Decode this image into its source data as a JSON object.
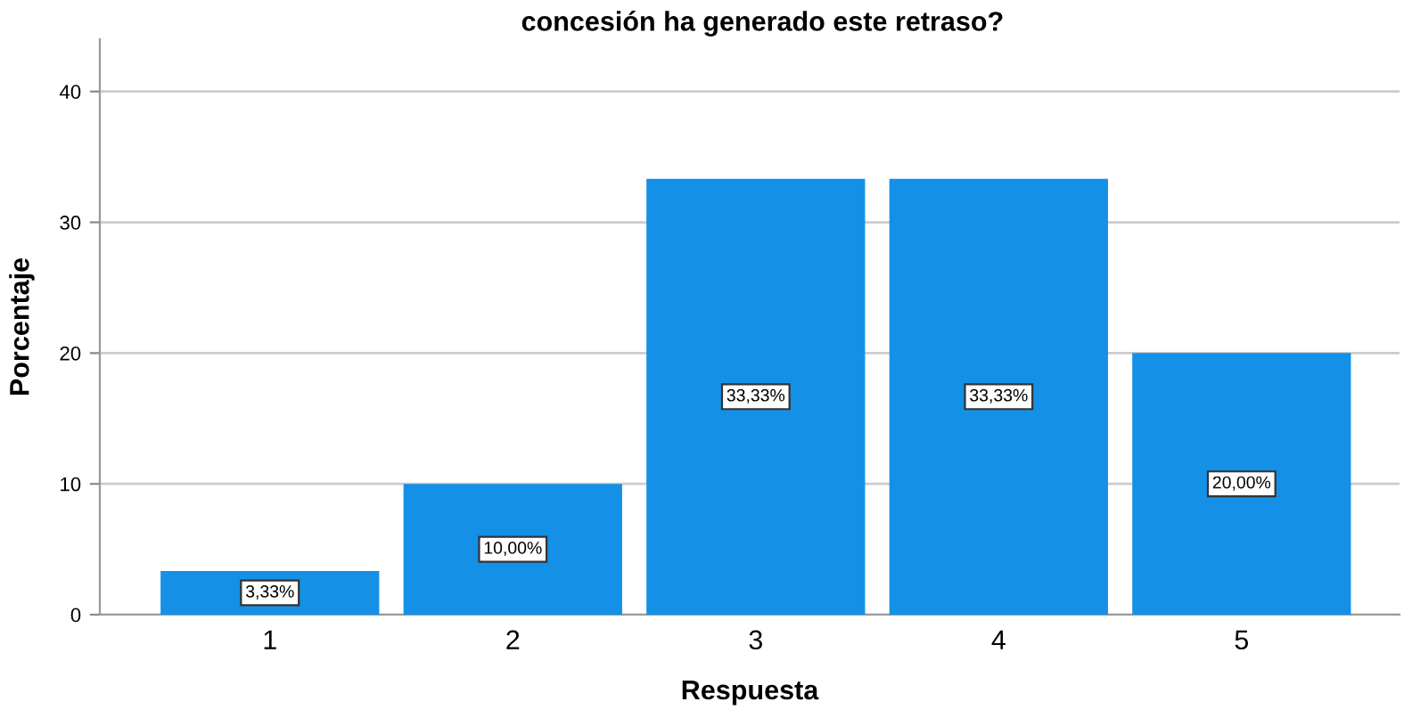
{
  "chart_data": {
    "type": "bar",
    "title": "concesión ha generado este retraso?",
    "xlabel": "Respuesta",
    "ylabel": "Porcentaje",
    "categories": [
      "1",
      "2",
      "3",
      "4",
      "5"
    ],
    "values": [
      3.33,
      10.0,
      33.33,
      33.33,
      20.0
    ],
    "value_labels": [
      "3,33%",
      "10,00%",
      "33,33%",
      "33,33%",
      "20,00%"
    ],
    "color": "#1490e6",
    "ylim": [
      0,
      44
    ],
    "yticks": [
      0,
      10,
      20,
      30,
      40
    ],
    "grid": "y"
  }
}
